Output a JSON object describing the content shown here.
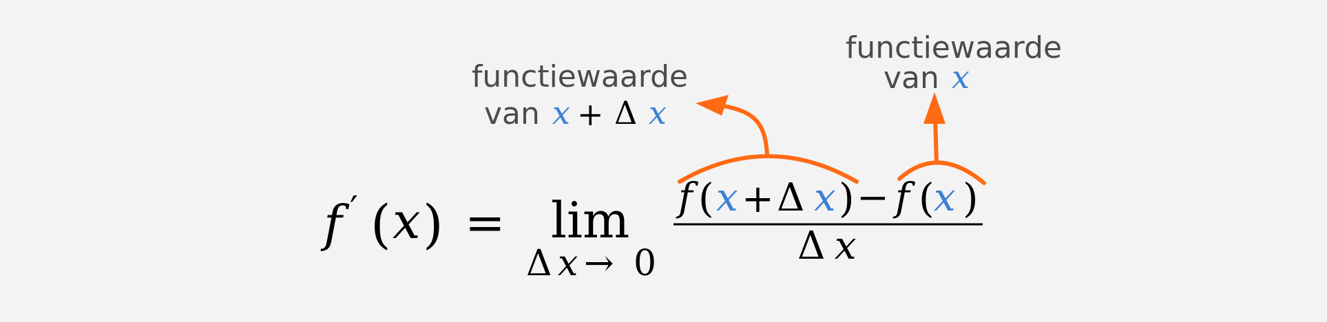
{
  "colors": {
    "background": "#f3f3f3",
    "accent_orange": "#ff6a13",
    "variable_blue": "#3a7fd6",
    "text_black": "#000000",
    "label_gray": "#4b4b4b"
  },
  "formula": {
    "lhs_f": "f",
    "lhs_prime": "′",
    "lhs_open": "(",
    "lhs_x": "x",
    "lhs_close": ")",
    "equals": "=",
    "lim": "lim",
    "lim_sub_delta": "Δ",
    "lim_sub_x": "x",
    "lim_sub_arrow": "→",
    "lim_sub_zero": "0",
    "num_f1": "f",
    "num_open1": "(",
    "num_x1": "x",
    "num_plus": "+",
    "num_delta1": "Δ",
    "num_x2": "x",
    "num_close1": ")",
    "num_minus": "−",
    "num_f2": "f",
    "num_open2": "(",
    "num_x3": "x",
    "num_close2": ")",
    "den_delta": "Δ",
    "den_x": "x"
  },
  "annotations": {
    "left": {
      "line1": "functiewaarde",
      "line2_text": "van",
      "line2_x1": "x",
      "line2_plus": "+",
      "line2_delta": "Δ",
      "line2_x2": "x"
    },
    "right": {
      "line1": "functiewaarde",
      "line2_text": "van",
      "line2_x": "x"
    }
  },
  "icons": {
    "left_arrow": "curved-arrow-up-left-icon",
    "right_arrow": "arrow-up-icon"
  }
}
